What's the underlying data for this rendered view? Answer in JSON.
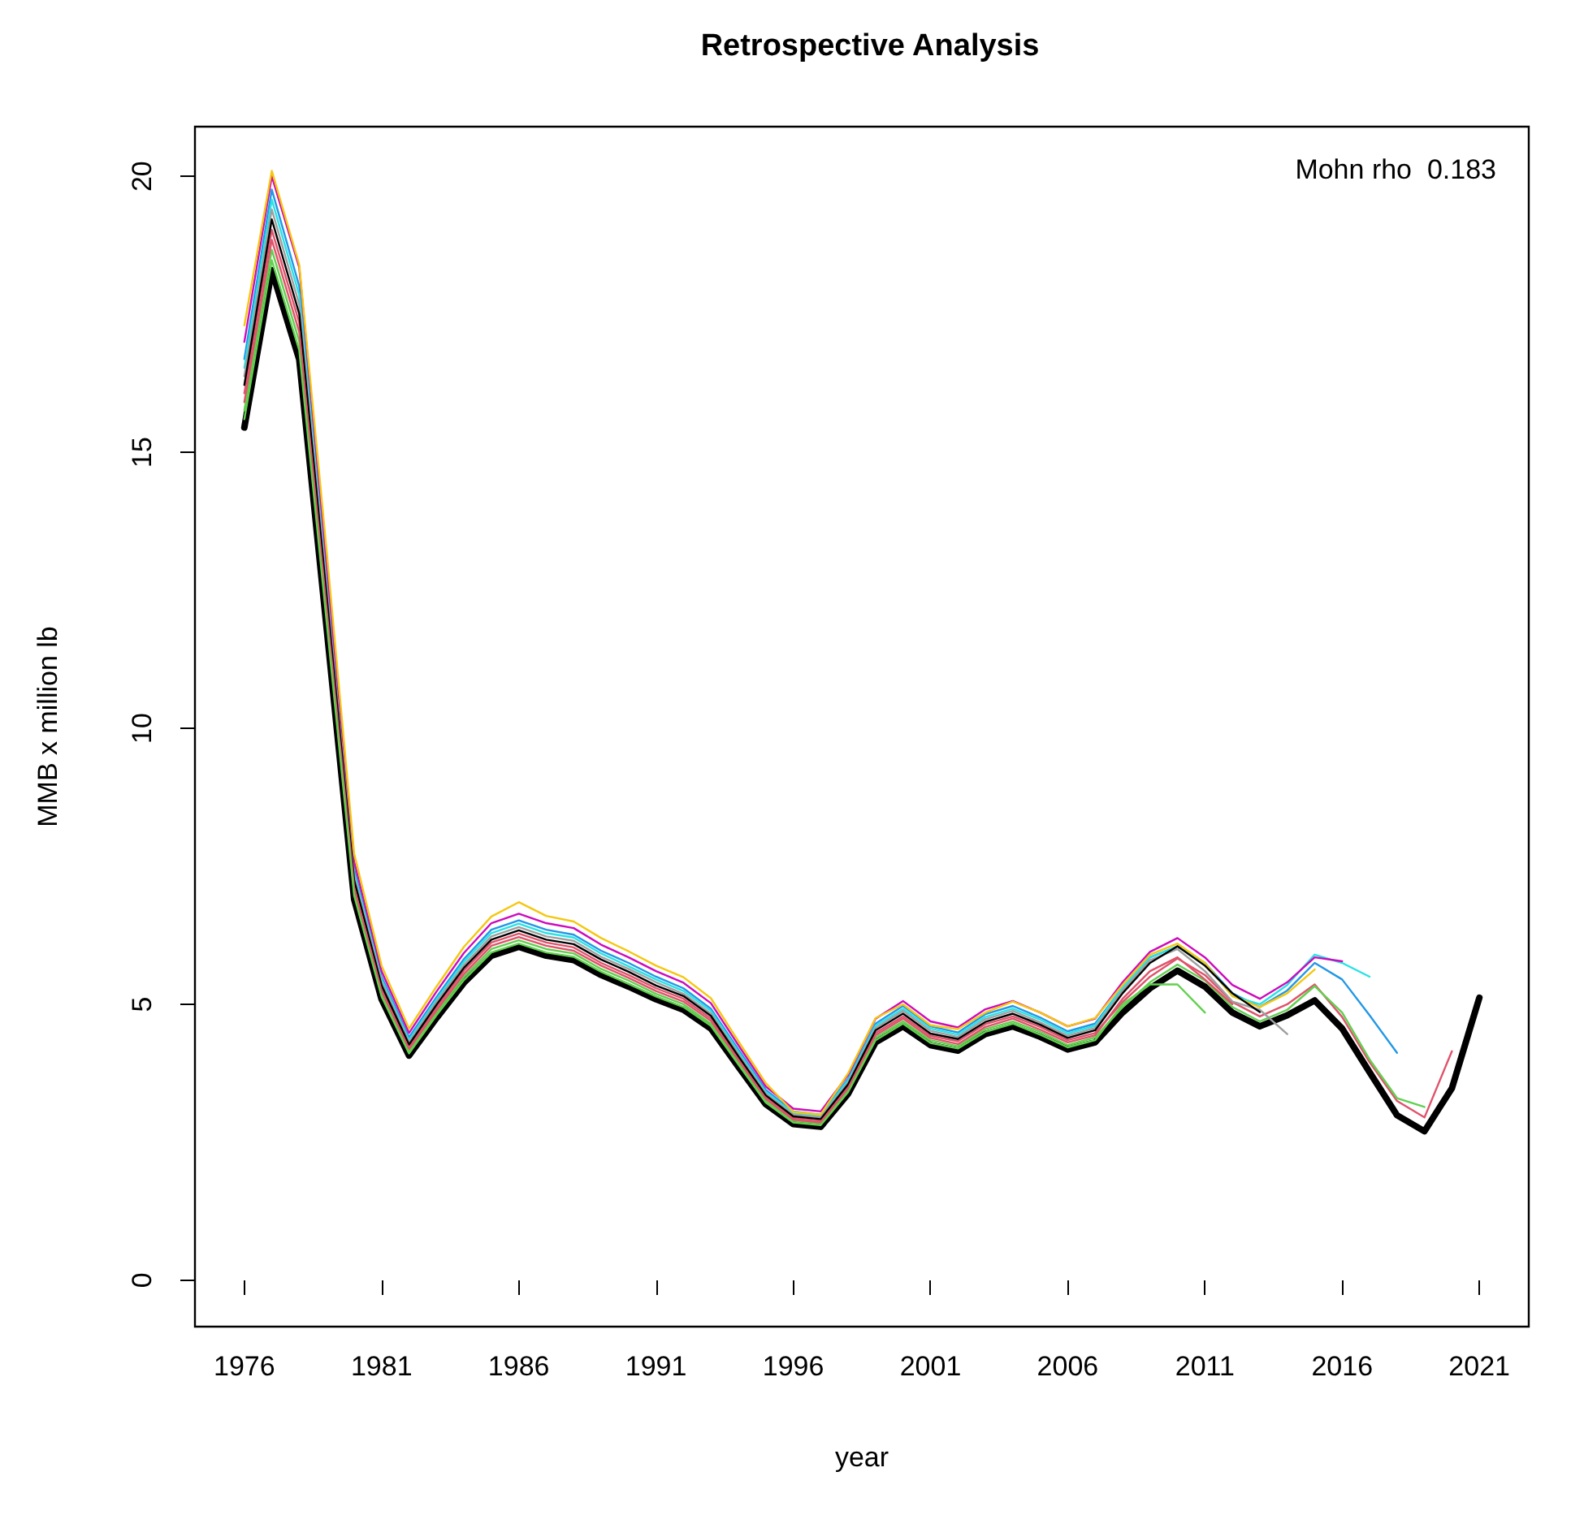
{
  "chart_data": {
    "type": "line",
    "title": "Retrospective Analysis",
    "xlabel": "year",
    "ylabel": "MMB x million lb",
    "annotations": [
      "Mohn rho  0.183"
    ],
    "x": [
      1976,
      1977,
      1978,
      1979,
      1980,
      1981,
      1982,
      1983,
      1984,
      1985,
      1986,
      1987,
      1988,
      1989,
      1990,
      1991,
      1992,
      1993,
      1994,
      1995,
      1996,
      1997,
      1998,
      1999,
      2000,
      2001,
      2002,
      2003,
      2004,
      2005,
      2006,
      2007,
      2008,
      2009,
      2010,
      2011,
      2012,
      2013,
      2014,
      2015,
      2016,
      2017,
      2018,
      2019,
      2020,
      2021
    ],
    "xlim": [
      1974.2,
      2022.8
    ],
    "xticks": [
      1976,
      1981,
      1986,
      1991,
      1996,
      2001,
      2006,
      2011,
      2016,
      2021
    ],
    "ylim": [
      -0.84,
      20.9
    ],
    "yticks": [
      0,
      5,
      10,
      15,
      20
    ],
    "grid": false,
    "marker": "none",
    "line_style": "solid",
    "series": [
      {
        "color": "#000000",
        "values": [
          15.45,
          18.3,
          16.68,
          11.8,
          6.9,
          5.09,
          4.07,
          4.75,
          5.39,
          5.88,
          6.04,
          5.88,
          5.8,
          5.53,
          5.32,
          5.09,
          4.9,
          4.56,
          3.87,
          3.19,
          2.83,
          2.78,
          3.38,
          4.31,
          4.6,
          4.26,
          4.16,
          4.46,
          4.6,
          4.41,
          4.18,
          4.31,
          4.85,
          5.29,
          5.61,
          5.32,
          4.85,
          4.6,
          4.8,
          5.07,
          4.56,
          3.77,
          2.99,
          2.7,
          3.48,
          5.12
        ]
      },
      {
        "color": "#df536b",
        "values": [
          16.07,
          19.03,
          17.35,
          12.27,
          7.18,
          5.29,
          4.23,
          4.94,
          5.61,
          6.12,
          6.28,
          6.12,
          6.03,
          5.75,
          5.53,
          5.29,
          5.1,
          4.74,
          4.02,
          3.32,
          2.94,
          2.89,
          3.52,
          4.48,
          4.78,
          4.43,
          4.33,
          4.64,
          4.78,
          4.59,
          4.35,
          4.48,
          5.04,
          5.5,
          5.83,
          5.53,
          5.04,
          4.78,
          5.0,
          5.36,
          4.77,
          3.95,
          3.25,
          2.95,
          4.15,
          null
        ]
      },
      {
        "color": "#61d04f",
        "values": [
          15.76,
          18.67,
          17.01,
          12.04,
          7.04,
          5.19,
          4.15,
          4.85,
          5.5,
          6.0,
          6.16,
          6.0,
          5.92,
          5.64,
          5.43,
          5.19,
          5.0,
          4.65,
          3.95,
          3.25,
          2.89,
          2.84,
          3.45,
          4.4,
          4.69,
          4.35,
          4.24,
          4.55,
          4.69,
          4.5,
          4.26,
          4.4,
          4.95,
          5.4,
          5.72,
          5.43,
          4.95,
          4.69,
          4.9,
          5.33,
          4.85,
          4.0,
          3.3,
          3.14,
          null,
          null
        ]
      },
      {
        "color": "#2297e6",
        "values": [
          16.69,
          19.76,
          18.01,
          12.74,
          7.45,
          5.5,
          4.4,
          5.13,
          5.82,
          6.35,
          6.52,
          6.35,
          6.26,
          5.97,
          5.75,
          5.5,
          5.29,
          4.92,
          4.18,
          3.45,
          3.06,
          3.0,
          3.65,
          4.65,
          4.97,
          4.6,
          4.49,
          4.82,
          4.97,
          4.76,
          4.51,
          4.65,
          5.3,
          5.85,
          6.05,
          5.75,
          5.2,
          4.95,
          5.25,
          5.75,
          5.45,
          4.8,
          4.12,
          null,
          null,
          null
        ]
      },
      {
        "color": "#28e2e5",
        "values": [
          16.53,
          19.58,
          17.85,
          12.63,
          7.38,
          5.45,
          4.35,
          5.08,
          5.77,
          6.29,
          6.46,
          6.29,
          6.21,
          5.92,
          5.69,
          5.45,
          5.24,
          4.88,
          4.14,
          3.41,
          3.03,
          2.97,
          3.62,
          4.61,
          4.92,
          4.56,
          4.45,
          4.77,
          4.92,
          4.72,
          4.47,
          4.61,
          5.3,
          5.85,
          6.05,
          5.75,
          5.15,
          5.0,
          5.35,
          5.9,
          5.75,
          5.5,
          null,
          null,
          null,
          null
        ]
      },
      {
        "color": "#cd0bbc",
        "values": [
          17.0,
          20.0,
          18.35,
          12.98,
          7.59,
          5.6,
          4.48,
          5.23,
          5.93,
          6.47,
          6.64,
          6.47,
          6.38,
          6.08,
          5.85,
          5.6,
          5.39,
          5.02,
          4.26,
          3.51,
          3.11,
          3.06,
          3.72,
          4.74,
          5.06,
          4.69,
          4.58,
          4.91,
          5.06,
          4.85,
          4.6,
          4.74,
          5.4,
          5.95,
          6.2,
          5.85,
          5.35,
          5.1,
          5.4,
          5.85,
          5.78,
          null,
          null,
          null,
          null,
          null
        ]
      },
      {
        "color": "#f5c710",
        "values": [
          17.3,
          20.1,
          18.4,
          13.2,
          7.73,
          5.7,
          4.56,
          5.32,
          6.04,
          6.59,
          6.85,
          6.6,
          6.5,
          6.2,
          5.96,
          5.7,
          5.49,
          5.11,
          4.33,
          3.57,
          3.05,
          3.0,
          3.75,
          4.75,
          5.0,
          4.62,
          4.55,
          4.85,
          5.05,
          4.85,
          4.6,
          4.75,
          5.35,
          5.9,
          6.1,
          5.75,
          5.15,
          4.95,
          5.2,
          5.63,
          null,
          null,
          null,
          null,
          null,
          null
        ]
      },
      {
        "color": "#9e9e9e",
        "values": [
          16.38,
          19.4,
          17.68,
          12.51,
          7.31,
          5.4,
          4.31,
          5.04,
          5.71,
          6.23,
          6.4,
          6.23,
          6.15,
          5.86,
          5.64,
          5.4,
          5.19,
          4.83,
          4.1,
          3.38,
          3.0,
          2.95,
          3.58,
          4.57,
          4.88,
          4.52,
          4.41,
          4.73,
          4.88,
          4.67,
          4.43,
          4.57,
          5.25,
          5.8,
          6.0,
          5.6,
          5.05,
          4.9,
          4.46,
          null,
          null,
          null,
          null,
          null,
          null,
          null
        ]
      },
      {
        "color": "#000000",
        "values": [
          16.22,
          19.22,
          17.51,
          12.39,
          7.25,
          5.34,
          4.27,
          4.99,
          5.66,
          6.17,
          6.34,
          6.17,
          6.09,
          5.81,
          5.59,
          5.34,
          5.15,
          4.79,
          4.06,
          3.35,
          2.97,
          2.92,
          3.55,
          4.53,
          4.83,
          4.47,
          4.37,
          4.68,
          4.83,
          4.63,
          4.39,
          4.53,
          5.2,
          5.75,
          6.05,
          5.7,
          5.2,
          4.86,
          null,
          null,
          null,
          null,
          null,
          null,
          null,
          null
        ]
      },
      {
        "color": "#df536b",
        "values": [
          15.91,
          18.85,
          17.18,
          12.15,
          7.11,
          5.24,
          4.19,
          4.89,
          5.55,
          6.06,
          6.22,
          6.06,
          5.97,
          5.7,
          5.48,
          5.24,
          5.05,
          4.7,
          3.99,
          3.29,
          2.91,
          2.86,
          3.48,
          4.44,
          4.74,
          4.39,
          4.28,
          4.59,
          4.74,
          4.54,
          4.31,
          4.44,
          5.1,
          5.6,
          5.85,
          5.45,
          5.0,
          null,
          null,
          null,
          null,
          null,
          null,
          null,
          null,
          null
        ]
      },
      {
        "color": "#61d04f",
        "values": [
          15.6,
          18.48,
          16.85,
          11.92,
          6.97,
          5.14,
          4.11,
          4.8,
          5.44,
          5.94,
          6.1,
          5.94,
          5.86,
          5.59,
          5.37,
          5.14,
          4.95,
          4.61,
          3.91,
          3.22,
          2.86,
          2.81,
          3.41,
          4.35,
          4.65,
          4.3,
          4.2,
          4.5,
          4.65,
          4.45,
          4.22,
          4.35,
          5.0,
          5.36,
          5.36,
          4.85,
          null,
          null,
          null,
          null,
          null,
          null,
          null,
          null,
          null,
          null
        ]
      }
    ]
  }
}
